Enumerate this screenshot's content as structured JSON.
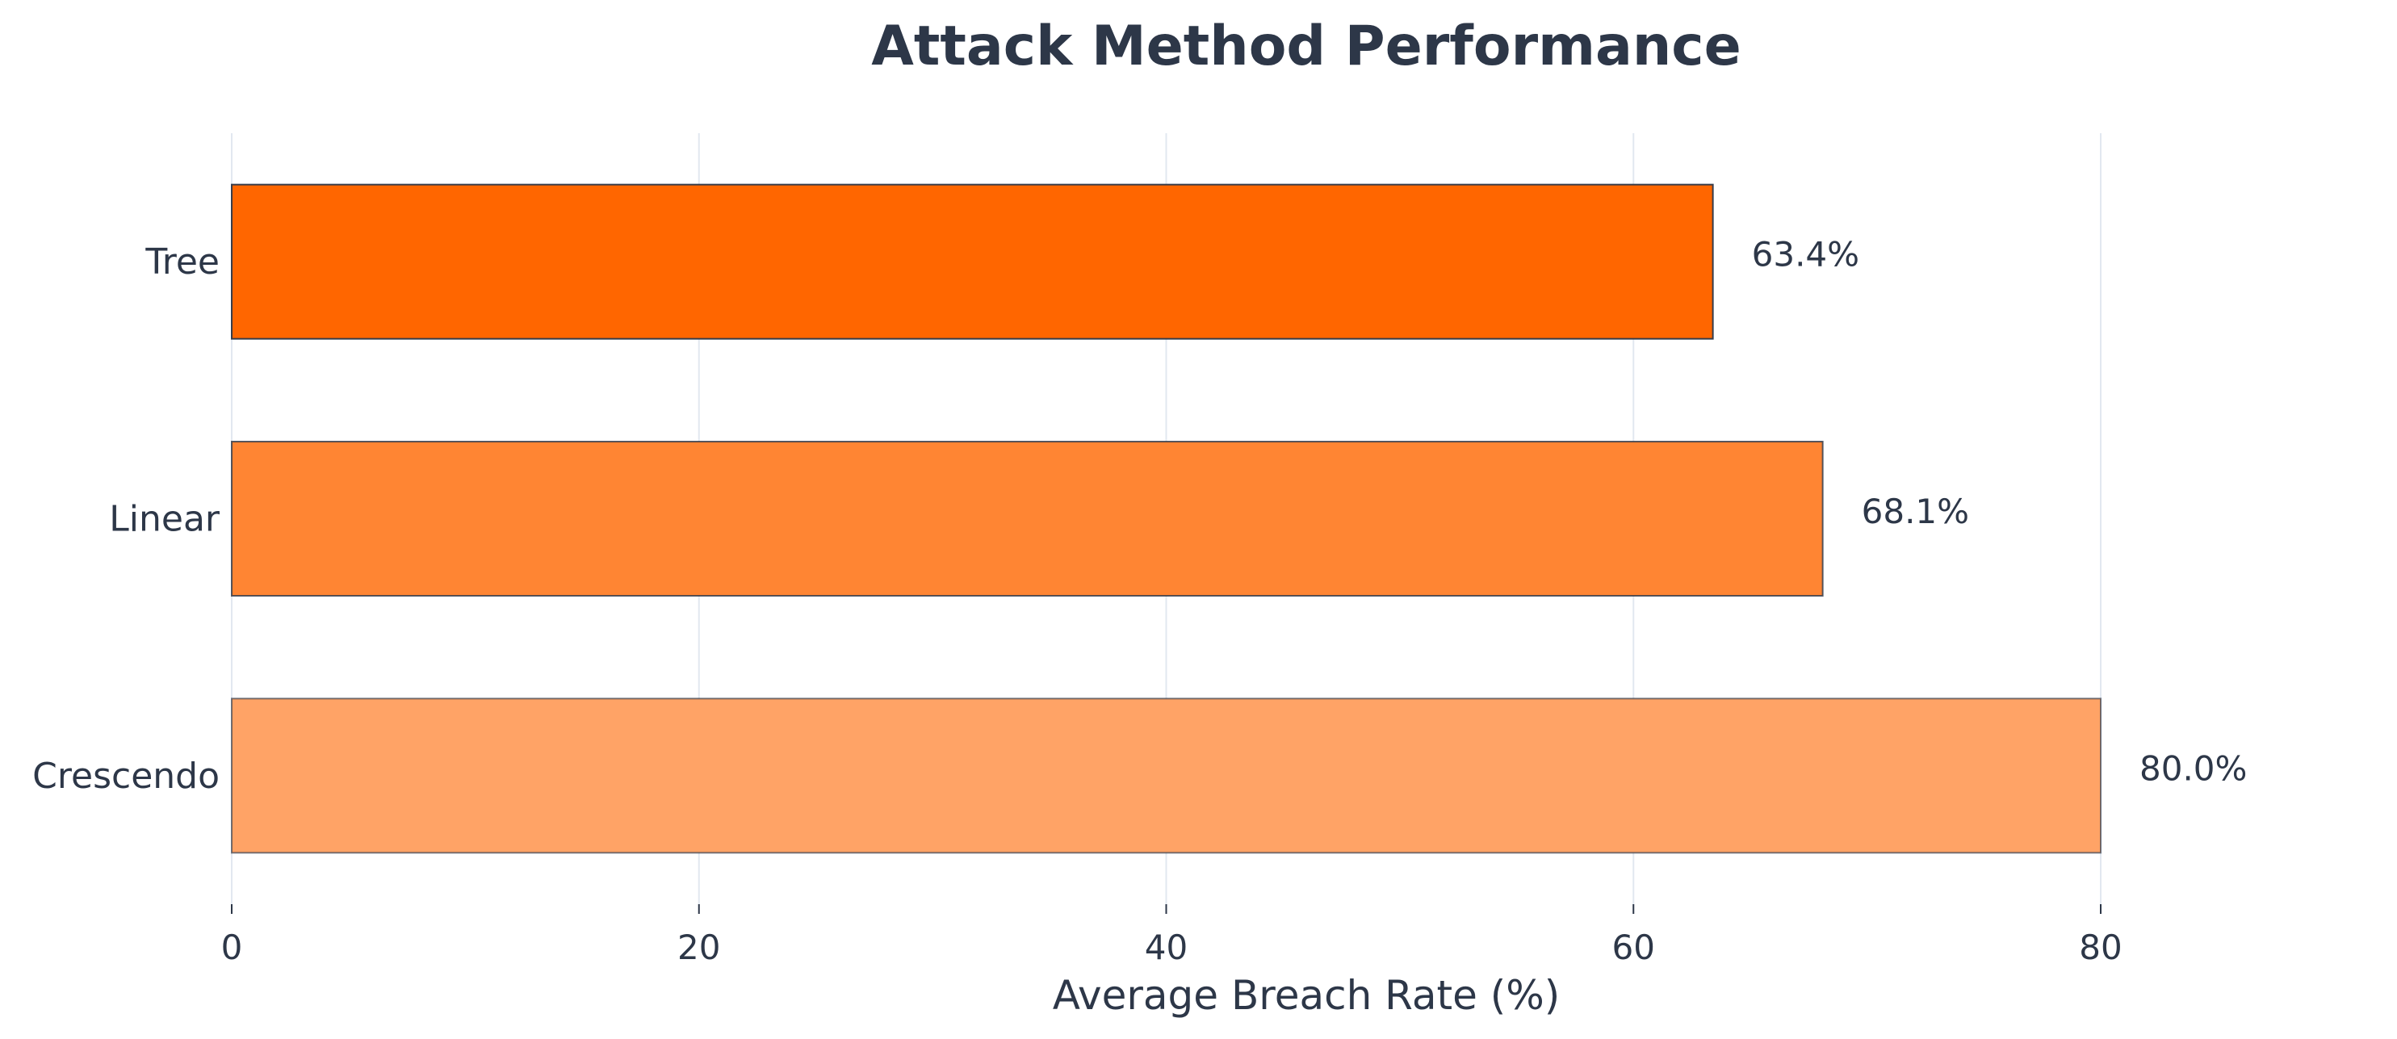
{
  "chart_data": {
    "type": "bar",
    "orientation": "horizontal",
    "title": "Attack Method Performance",
    "xlabel": "Average Breach Rate (%)",
    "ylabel": "",
    "categories": [
      "Tree",
      "Linear",
      "Crescendo"
    ],
    "values": [
      63.4,
      68.1,
      80.0
    ],
    "value_labels": [
      "63.4%",
      "68.1%",
      "80.0%"
    ],
    "xlim": [
      0,
      80
    ],
    "xticks": [
      0,
      20,
      40,
      60,
      80
    ],
    "grid": true,
    "legend": "none",
    "colors": [
      "#ff6600",
      "#ff8533",
      "#ffa366"
    ],
    "bar_edge_color": "#2d3748",
    "text_color": "#2d3748"
  }
}
